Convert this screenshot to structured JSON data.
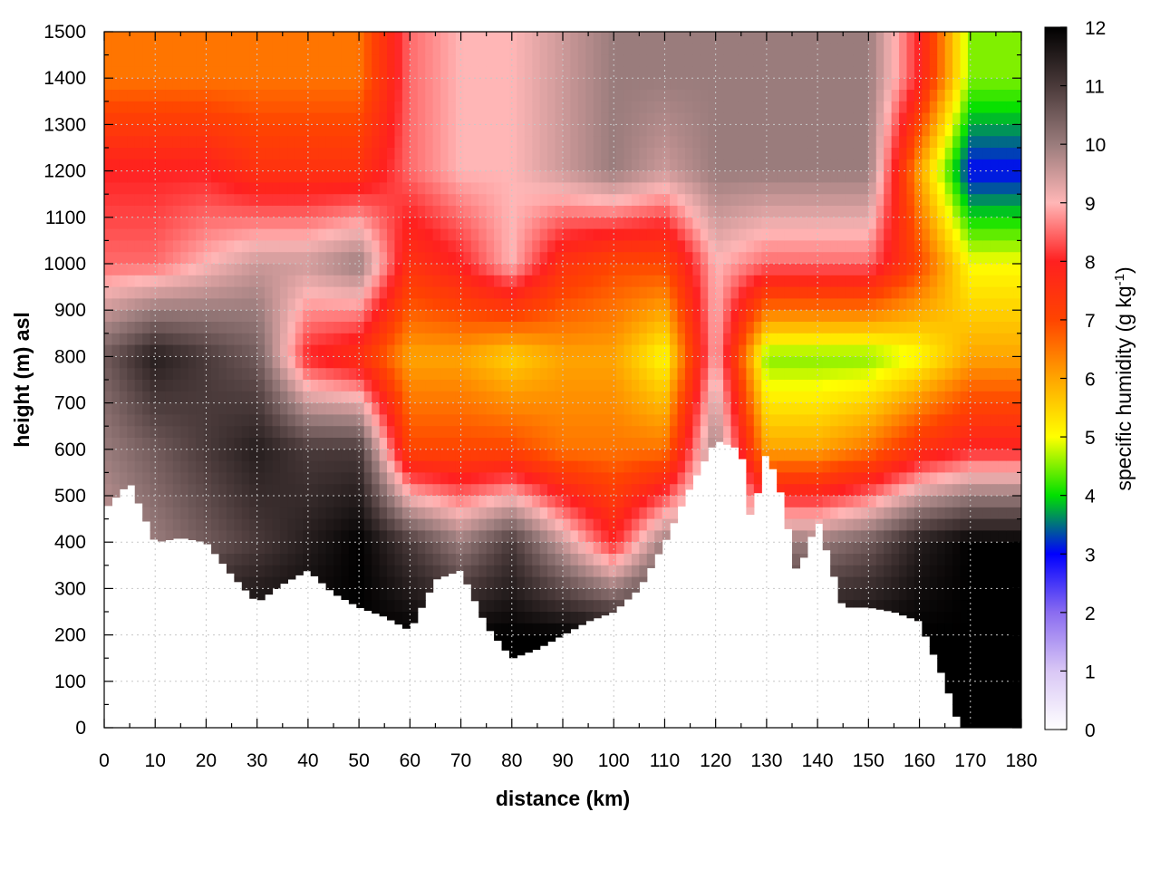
{
  "chart_data": {
    "type": "heatmap",
    "title": "",
    "xlabel": "distance (km)",
    "ylabel": "height (m) asl",
    "xlim": [
      0,
      180
    ],
    "ylim": [
      0,
      1500
    ],
    "x_ticks": [
      0,
      10,
      20,
      30,
      40,
      50,
      60,
      70,
      80,
      90,
      100,
      110,
      120,
      130,
      140,
      150,
      160,
      170,
      180
    ],
    "y_ticks": [
      0,
      100,
      200,
      300,
      400,
      500,
      600,
      700,
      800,
      900,
      1000,
      1100,
      1200,
      1300,
      1400,
      1500
    ],
    "grid": true,
    "colorbar": {
      "label_main": "specific humidity (g kg",
      "label_sup": "-1",
      "label_end": ")",
      "range": [
        0,
        12
      ],
      "ticks": [
        0,
        1,
        2,
        3,
        4,
        5,
        6,
        7,
        8,
        9,
        10,
        11,
        12
      ],
      "colors": [
        {
          "value": 0,
          "color": "#ffffff"
        },
        {
          "value": 1,
          "color": "#d9c7f5"
        },
        {
          "value": 2,
          "color": "#8a6cf0"
        },
        {
          "value": 3,
          "color": "#0000ff"
        },
        {
          "value": 4,
          "color": "#00e000"
        },
        {
          "value": 5,
          "color": "#ffff00"
        },
        {
          "value": 6,
          "color": "#ffa500"
        },
        {
          "value": 7,
          "color": "#ff4400"
        },
        {
          "value": 8,
          "color": "#ff2020"
        },
        {
          "value": 9,
          "color": "#ffb6b6"
        },
        {
          "value": 10,
          "color": "#9a7c7c"
        },
        {
          "value": 11,
          "color": "#4a3a3a"
        },
        {
          "value": 12,
          "color": "#000000"
        }
      ]
    },
    "terrain_km_m": [
      [
        0,
        470
      ],
      [
        5,
        530
      ],
      [
        10,
        400
      ],
      [
        15,
        410
      ],
      [
        20,
        400
      ],
      [
        25,
        330
      ],
      [
        30,
        270
      ],
      [
        35,
        310
      ],
      [
        40,
        340
      ],
      [
        45,
        290
      ],
      [
        50,
        260
      ],
      [
        55,
        240
      ],
      [
        60,
        210
      ],
      [
        65,
        320
      ],
      [
        70,
        340
      ],
      [
        75,
        220
      ],
      [
        80,
        150
      ],
      [
        85,
        170
      ],
      [
        90,
        200
      ],
      [
        95,
        230
      ],
      [
        100,
        250
      ],
      [
        105,
        300
      ],
      [
        110,
        400
      ],
      [
        115,
        520
      ],
      [
        120,
        620
      ],
      [
        125,
        600
      ],
      [
        127,
        440
      ],
      [
        130,
        600
      ],
      [
        133,
        500
      ],
      [
        136,
        330
      ],
      [
        140,
        450
      ],
      [
        145,
        260
      ],
      [
        150,
        260
      ],
      [
        155,
        250
      ],
      [
        160,
        230
      ],
      [
        165,
        100
      ],
      [
        168,
        0
      ],
      [
        180,
        0
      ]
    ],
    "cells": [
      {
        "x": [
          0,
          10,
          20,
          30,
          40,
          50,
          60,
          70,
          80,
          90,
          100,
          110,
          120,
          130,
          140,
          150,
          160,
          170,
          180
        ],
        "note_rows_m": [
          1400,
          1200,
          1000,
          800,
          600,
          400,
          200
        ]
      },
      {
        "row_m": 1400,
        "q": [
          6.5,
          6.5,
          6.5,
          6.5,
          6.5,
          6.5,
          8.5,
          9,
          9,
          9.5,
          10,
          10,
          10,
          10,
          10,
          10,
          8,
          4.5,
          4.5
        ]
      },
      {
        "row_m": 1200,
        "q": [
          8,
          8,
          8,
          7.5,
          7.5,
          7.5,
          8.5,
          9,
          9,
          9.5,
          10,
          9.5,
          10,
          10,
          10,
          10,
          6,
          3,
          3
        ]
      },
      {
        "row_m": 1000,
        "q": [
          8.5,
          8.5,
          9,
          9.5,
          9.5,
          10,
          7.5,
          8,
          9,
          7.5,
          7,
          7,
          9,
          8.5,
          8.5,
          8.5,
          7,
          5,
          5
        ]
      },
      {
        "row_m": 800,
        "q": [
          10.5,
          11.5,
          11,
          10.5,
          8,
          7.5,
          6,
          6,
          5.5,
          6,
          6,
          5,
          9,
          4.5,
          4.5,
          4.5,
          5,
          6,
          6
        ]
      },
      {
        "row_m": 600,
        "q": [
          10,
          10.5,
          11,
          11.5,
          11,
          11,
          7,
          7,
          7,
          6.5,
          6.5,
          6.5,
          10,
          6,
          6,
          6.5,
          7.5,
          8,
          8
        ]
      },
      {
        "row_m": 400,
        "q": [
          9.5,
          10,
          10.5,
          11,
          11.5,
          12,
          11,
          10,
          11,
          9.5,
          8,
          10,
          10,
          10,
          10,
          10.5,
          11.5,
          12,
          12
        ]
      },
      {
        "row_m": 200,
        "q": [
          12,
          12,
          12,
          12,
          12,
          12,
          12,
          12,
          12,
          12,
          12,
          12,
          12,
          12,
          12,
          12,
          12,
          12,
          12
        ]
      }
    ]
  }
}
